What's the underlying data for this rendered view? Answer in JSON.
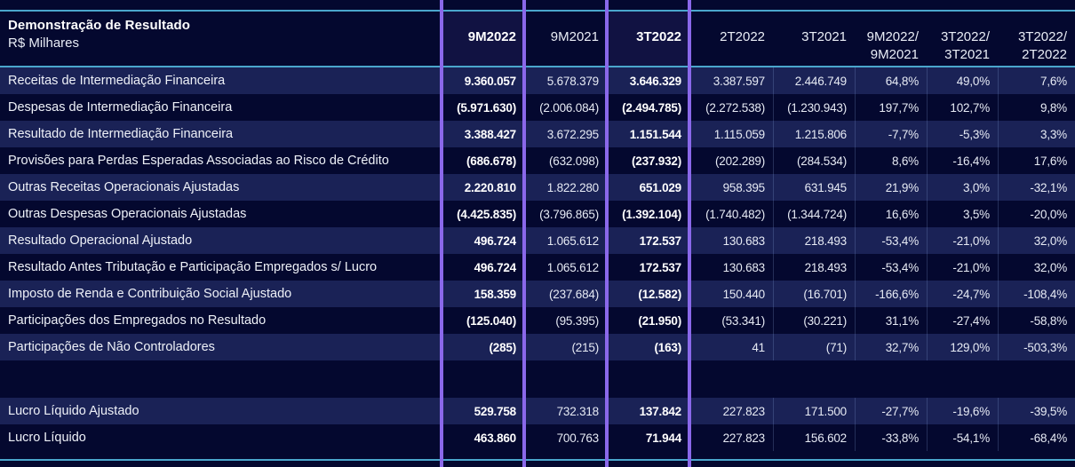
{
  "page": {
    "background": "#04082f",
    "row_light": "#1a2256",
    "accent_purple": "#8a68ea",
    "accent_teal": "#4aa6cc"
  },
  "table": {
    "title": "Demonstração de Resultado",
    "subtitle": "R$ Milhares",
    "columns": [
      {
        "label": "9M2022",
        "label2": "",
        "bold": true,
        "framed": true
      },
      {
        "label": "9M2021",
        "label2": "",
        "bold": false,
        "framed": false
      },
      {
        "label": "3T2022",
        "label2": "",
        "bold": true,
        "framed": true
      },
      {
        "label": "2T2022",
        "label2": "",
        "bold": false,
        "framed": false
      },
      {
        "label": "3T2021",
        "label2": "",
        "bold": false,
        "framed": false
      },
      {
        "label": "9M2022/",
        "label2": "9M2021",
        "bold": false,
        "framed": false
      },
      {
        "label": "3T2022/",
        "label2": "3T2021",
        "bold": false,
        "framed": false
      },
      {
        "label": "3T2022/",
        "label2": "2T2022",
        "bold": false,
        "framed": false
      }
    ],
    "rows": [
      {
        "label": "Receitas de Intermediação Financeira",
        "values": [
          "9.360.057",
          "5.678.379",
          "3.646.329",
          "3.387.597",
          "2.446.749",
          "64,8%",
          "49,0%",
          "7,6%"
        ]
      },
      {
        "label": "Despesas de Intermediação Financeira",
        "values": [
          "(5.971.630)",
          "(2.006.084)",
          "(2.494.785)",
          "(2.272.538)",
          "(1.230.943)",
          "197,7%",
          "102,7%",
          "9,8%"
        ]
      },
      {
        "label": "Resultado de Intermediação Financeira",
        "values": [
          "3.388.427",
          "3.672.295",
          "1.151.544",
          "1.115.059",
          "1.215.806",
          "-7,7%",
          "-5,3%",
          "3,3%"
        ]
      },
      {
        "label": "Provisões para Perdas Esperadas Associadas ao Risco de Crédito",
        "values": [
          "(686.678)",
          "(632.098)",
          "(237.932)",
          "(202.289)",
          "(284.534)",
          "8,6%",
          "-16,4%",
          "17,6%"
        ]
      },
      {
        "label": "Outras Receitas Operacionais Ajustadas",
        "values": [
          "2.220.810",
          "1.822.280",
          "651.029",
          "958.395",
          "631.945",
          "21,9%",
          "3,0%",
          "-32,1%"
        ]
      },
      {
        "label": "Outras Despesas Operacionais Ajustadas",
        "values": [
          "(4.425.835)",
          "(3.796.865)",
          "(1.392.104)",
          "(1.740.482)",
          "(1.344.724)",
          "16,6%",
          "3,5%",
          "-20,0%"
        ]
      },
      {
        "label": "Resultado Operacional Ajustado",
        "values": [
          "496.724",
          "1.065.612",
          "172.537",
          "130.683",
          "218.493",
          "-53,4%",
          "-21,0%",
          "32,0%"
        ]
      },
      {
        "label": "Resultado Antes Tributação e Participação Empregados s/ Lucro",
        "values": [
          "496.724",
          "1.065.612",
          "172.537",
          "130.683",
          "218.493",
          "-53,4%",
          "-21,0%",
          "32,0%"
        ]
      },
      {
        "label": "Imposto de Renda e Contribuição Social Ajustado",
        "values": [
          "158.359",
          "(237.684)",
          "(12.582)",
          "150.440",
          "(16.701)",
          "-166,6%",
          "-24,7%",
          "-108,4%"
        ]
      },
      {
        "label": "Participações dos Empregados no Resultado",
        "values": [
          "(125.040)",
          "(95.395)",
          "(21.950)",
          "(53.341)",
          "(30.221)",
          "31,1%",
          "-27,4%",
          "-58,8%"
        ]
      },
      {
        "label": "Participações de Não Controladores",
        "values": [
          "(285)",
          "(215)",
          "(163)",
          "41",
          "(71)",
          "32,7%",
          "129,0%",
          "-503,3%"
        ]
      },
      {
        "spacer": true
      },
      {
        "label": "Lucro Líquido Ajustado",
        "values": [
          "529.758",
          "732.318",
          "137.842",
          "227.823",
          "171.500",
          "-27,7%",
          "-19,6%",
          "-39,5%"
        ]
      },
      {
        "label": "Lucro Líquido",
        "values": [
          "463.860",
          "700.763",
          "71.944",
          "227.823",
          "156.602",
          "-33,8%",
          "-54,1%",
          "-68,4%"
        ]
      }
    ]
  }
}
